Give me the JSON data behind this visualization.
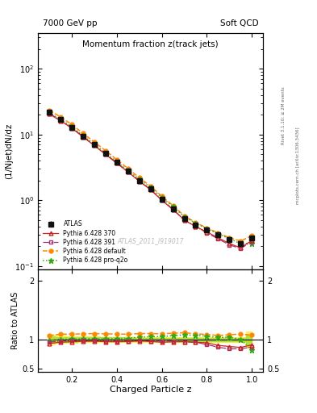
{
  "title": "Momentum fraction z(track jets)",
  "top_left_label": "7000 GeV pp",
  "top_right_label": "Soft QCD",
  "ylabel_main": "(1/Njet)dN/dz",
  "ylabel_ratio": "Ratio to ATLAS",
  "xlabel": "Charged Particle z",
  "watermark": "ATLAS_2011_I919017",
  "right_label1": "Rivet 3.1.10; ≥ 2M events",
  "right_label2": "mcplots.cern.ch [arXiv:1306.3436]",
  "z_values": [
    0.1,
    0.15,
    0.2,
    0.25,
    0.3,
    0.35,
    0.4,
    0.45,
    0.5,
    0.55,
    0.6,
    0.65,
    0.7,
    0.75,
    0.8,
    0.85,
    0.9,
    0.95,
    1.0
  ],
  "atlas_data": [
    22.0,
    17.0,
    13.0,
    9.5,
    7.0,
    5.2,
    3.8,
    2.8,
    2.0,
    1.5,
    1.05,
    0.75,
    0.52,
    0.42,
    0.35,
    0.3,
    0.25,
    0.22,
    0.27
  ],
  "atlas_err": [
    0.6,
    0.45,
    0.35,
    0.25,
    0.18,
    0.13,
    0.1,
    0.08,
    0.06,
    0.045,
    0.03,
    0.022,
    0.016,
    0.013,
    0.011,
    0.01,
    0.008,
    0.007,
    0.014
  ],
  "py370_data": [
    20.5,
    16.2,
    12.5,
    9.2,
    6.8,
    5.0,
    3.65,
    2.7,
    1.95,
    1.45,
    1.0,
    0.72,
    0.5,
    0.4,
    0.33,
    0.27,
    0.22,
    0.19,
    0.245
  ],
  "py391_data": [
    21.0,
    16.5,
    12.7,
    9.3,
    6.85,
    5.05,
    3.7,
    2.72,
    1.96,
    1.46,
    1.02,
    0.73,
    0.5,
    0.4,
    0.32,
    0.26,
    0.21,
    0.185,
    0.235
  ],
  "pydef_data": [
    23.5,
    18.5,
    14.2,
    10.4,
    7.7,
    5.7,
    4.15,
    3.05,
    2.2,
    1.65,
    1.15,
    0.83,
    0.58,
    0.46,
    0.38,
    0.32,
    0.27,
    0.24,
    0.29
  ],
  "pyq2o_data": [
    21.5,
    17.0,
    13.1,
    9.6,
    7.1,
    5.25,
    3.85,
    2.85,
    2.08,
    1.57,
    1.1,
    0.8,
    0.56,
    0.45,
    0.37,
    0.31,
    0.26,
    0.22,
    0.22
  ],
  "ratio370": [
    0.93,
    0.953,
    0.962,
    0.968,
    0.971,
    0.962,
    0.961,
    0.964,
    0.975,
    0.967,
    0.952,
    0.96,
    0.962,
    0.952,
    0.943,
    0.9,
    0.88,
    0.864,
    0.907
  ],
  "ratio391": [
    0.955,
    0.971,
    0.977,
    0.979,
    0.979,
    0.971,
    0.974,
    0.971,
    0.98,
    0.973,
    0.971,
    0.973,
    0.962,
    0.952,
    0.914,
    0.867,
    0.84,
    0.841,
    0.87
  ],
  "ratiodef": [
    1.068,
    1.088,
    1.092,
    1.095,
    1.1,
    1.096,
    1.092,
    1.089,
    1.1,
    1.1,
    1.095,
    1.107,
    1.115,
    1.095,
    1.086,
    1.067,
    1.08,
    1.091,
    1.074
  ],
  "ratioq2o": [
    0.977,
    1.0,
    1.008,
    1.011,
    1.014,
    1.01,
    1.013,
    1.018,
    1.04,
    1.047,
    1.048,
    1.067,
    1.077,
    1.071,
    1.057,
    1.033,
    1.04,
    1.0,
    0.815
  ],
  "atlas_band_lo": [
    0.92,
    0.94,
    0.945,
    0.95,
    0.95,
    0.955,
    0.955,
    0.955,
    0.96,
    0.96,
    0.96,
    0.96,
    0.96,
    0.96,
    0.96,
    0.96,
    0.96,
    0.96,
    0.86
  ],
  "atlas_band_hi": [
    1.08,
    1.06,
    1.055,
    1.05,
    1.05,
    1.045,
    1.045,
    1.045,
    1.04,
    1.04,
    1.04,
    1.04,
    1.04,
    1.04,
    1.04,
    1.04,
    1.04,
    1.04,
    1.14
  ],
  "atlas_band_inner_lo": [
    0.95,
    0.96,
    0.963,
    0.965,
    0.965,
    0.968,
    0.968,
    0.968,
    0.97,
    0.97,
    0.97,
    0.97,
    0.97,
    0.97,
    0.97,
    0.97,
    0.97,
    0.97,
    0.92
  ],
  "atlas_band_inner_hi": [
    1.05,
    1.04,
    1.037,
    1.035,
    1.035,
    1.032,
    1.032,
    1.032,
    1.03,
    1.03,
    1.03,
    1.03,
    1.03,
    1.03,
    1.03,
    1.03,
    1.03,
    1.03,
    1.08
  ],
  "color_atlas": "#111111",
  "color_370": "#cc2222",
  "color_391": "#993377",
  "color_def": "#ff8800",
  "color_q2o": "#33aa11",
  "band_yellow": "#ffee44",
  "band_green": "#aadd33",
  "ylim_main": [
    0.09,
    350
  ],
  "ylim_ratio": [
    0.45,
    2.2
  ],
  "xlim": [
    0.05,
    1.05
  ]
}
